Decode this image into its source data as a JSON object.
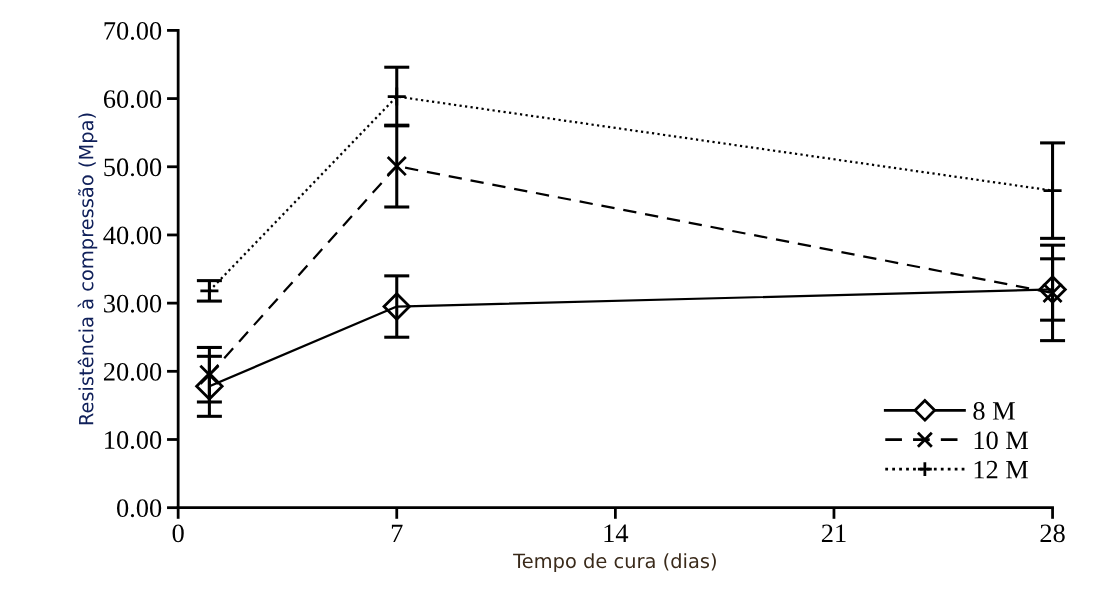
{
  "chart_data": {
    "type": "line",
    "xlabel": "Tempo de cura (dias)",
    "ylabel": "Resistência à compressão (Mpa)",
    "x": [
      1,
      7,
      28
    ],
    "xlim": [
      0,
      28
    ],
    "xticks": [
      0,
      7,
      14,
      21,
      28
    ],
    "ylim": [
      0,
      70
    ],
    "yticks": [
      {
        "value": 0,
        "label": "0.00"
      },
      {
        "value": 10,
        "label": "10.00"
      },
      {
        "value": 20,
        "label": "20.00"
      },
      {
        "value": 30,
        "label": "30.00"
      },
      {
        "value": 40,
        "label": "40.00"
      },
      {
        "value": 50,
        "label": "50.00"
      },
      {
        "value": 60,
        "label": "60.00"
      },
      {
        "value": 70,
        "label": "70.00"
      }
    ],
    "grid": false,
    "legend": "bottom right",
    "series": [
      {
        "name": "8 M",
        "color": "#000000",
        "marker": "diamond",
        "line_style": "solid",
        "values": [
          17.8,
          29.5,
          32.0
        ],
        "errors": [
          4.4,
          4.5,
          4.5
        ]
      },
      {
        "name": "10 M",
        "color": "#000000",
        "marker": "x",
        "line_style": "dashed",
        "values": [
          19.5,
          50.1,
          31.5
        ],
        "errors": [
          4.0,
          6.0,
          7.0
        ]
      },
      {
        "name": "12 M",
        "color": "#000000",
        "marker": "plus",
        "line_style": "dotted",
        "values": [
          31.8,
          60.3,
          46.5
        ],
        "errors": [
          1.5,
          4.3,
          7.0
        ]
      }
    ]
  }
}
